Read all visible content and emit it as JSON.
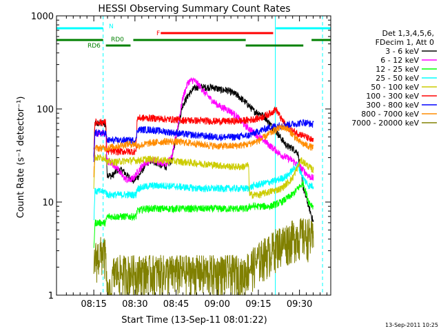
{
  "chart_data": {
    "type": "line",
    "title": "HESSI Observing Summary Count Rates",
    "xlabel": "Start Time (13-Sep-11 08:01:22)",
    "ylabel": "Count Rate (s⁻¹ detector⁻¹)",
    "yscale": "log",
    "ylim": [
      1,
      1000
    ],
    "xlim_minutes": [
      0,
      100
    ],
    "x_ticks": [
      "08:15",
      "08:30",
      "08:45",
      "09:00",
      "09:15",
      "09:30"
    ],
    "y_ticks": [
      "1",
      "10",
      "100",
      "1000"
    ],
    "timestamp": "13-Sep-2011 10:25",
    "legend": {
      "placement": "right",
      "header_lines": [
        "Det 1,3,4,5,6,",
        "FDecim 1, Att 0"
      ]
    },
    "series": [
      {
        "name": "3 - 6 keV",
        "color": "#000000",
        "x": [
          13.6,
          14,
          17,
          18,
          18.4,
          20,
          21,
          22,
          24,
          26,
          28,
          30,
          32,
          34,
          36,
          38,
          40,
          42,
          44,
          46,
          48,
          50,
          52,
          54,
          56,
          58,
          60,
          62,
          64,
          66,
          68,
          70,
          72,
          74,
          76,
          78,
          80,
          82,
          84,
          86,
          88,
          90,
          92,
          93.7
        ],
        "y": [
          30,
          70,
          70,
          68,
          20,
          19,
          20,
          22,
          22,
          19,
          17,
          19,
          24,
          28,
          27,
          25,
          24,
          28,
          60,
          110,
          140,
          165,
          175,
          170,
          172,
          168,
          160,
          160,
          150,
          140,
          125,
          110,
          95,
          90,
          82,
          68,
          58,
          48,
          40,
          38,
          34,
          14,
          9,
          6
        ]
      },
      {
        "name": "6 - 12 keV",
        "color": "#ff00ff",
        "x": [
          13.6,
          14,
          17,
          18,
          18.4,
          20,
          22,
          24,
          26,
          28,
          30,
          32,
          34,
          36,
          38,
          40,
          42,
          44,
          46,
          48,
          50,
          52,
          54,
          56,
          58,
          60,
          62,
          64,
          66,
          68,
          70,
          72,
          74,
          76,
          78,
          80,
          82,
          84,
          86,
          88,
          90,
          92,
          93.7
        ],
        "y": [
          30,
          55,
          55,
          53,
          28,
          26,
          24,
          19,
          17,
          18,
          22,
          26,
          28,
          28,
          27,
          26,
          30,
          60,
          130,
          195,
          205,
          180,
          150,
          130,
          115,
          105,
          100,
          92,
          82,
          70,
          62,
          56,
          50,
          45,
          40,
          36,
          32,
          30,
          28,
          25,
          22,
          19,
          18
        ]
      },
      {
        "name": "12 - 25 keV",
        "color": "#00ff00",
        "x": [
          13.6,
          14,
          18,
          18.4,
          20,
          24,
          29,
          29.4,
          32,
          36,
          40,
          44,
          48,
          52,
          56,
          60,
          64,
          68,
          70,
          70.4,
          74,
          78,
          80,
          82,
          84,
          86,
          88,
          90,
          92,
          93.7
        ],
        "y": [
          3,
          6,
          6,
          7,
          7,
          7,
          7,
          8,
          8.5,
          8.5,
          8.5,
          8.5,
          8.5,
          8.5,
          8.5,
          8.5,
          8.5,
          8.5,
          8.5,
          9,
          9,
          9,
          9.5,
          10,
          11,
          12,
          14,
          16,
          10,
          9
        ]
      },
      {
        "name": "25 - 50 keV",
        "color": "#00ffff",
        "x": [
          13.6,
          14,
          18,
          18.4,
          22,
          26,
          29,
          29.4,
          34,
          40,
          46,
          52,
          58,
          64,
          68,
          70,
          72,
          76,
          80,
          84,
          86,
          88,
          90,
          92,
          93.7
        ],
        "y": [
          6,
          13,
          13,
          12,
          12,
          12,
          12,
          14,
          15,
          15,
          14.5,
          14,
          14,
          14,
          14,
          14,
          15,
          16,
          17,
          19,
          22,
          25,
          18,
          15,
          15
        ]
      },
      {
        "name": "50 - 100 keV",
        "color": "#cccc00",
        "x": [
          13.6,
          14,
          18,
          18.4,
          22,
          26,
          29,
          29.4,
          34,
          40,
          46,
          52,
          58,
          64,
          68,
          70,
          70.4,
          74,
          78,
          82,
          86,
          88,
          89,
          90,
          92,
          93.7
        ],
        "y": [
          15,
          30,
          30,
          27,
          27,
          28,
          28,
          28,
          29,
          28,
          27,
          26,
          25,
          24,
          24,
          25,
          12,
          12,
          13,
          14,
          18,
          24,
          28,
          27,
          24,
          22
        ]
      },
      {
        "name": "100 - 300 keV",
        "color": "#ff0000",
        "x": [
          13.6,
          14,
          18,
          18.4,
          22,
          26,
          29,
          29.4,
          34,
          40,
          46,
          52,
          58,
          64,
          68,
          70,
          74,
          78,
          80,
          82,
          84,
          86,
          88,
          90,
          92,
          93.7
        ],
        "y": [
          35,
          72,
          72,
          35,
          35,
          35,
          35,
          80,
          80,
          78,
          76,
          75,
          74,
          74,
          75,
          76,
          80,
          90,
          100,
          78,
          65,
          58,
          55,
          52,
          48,
          45
        ]
      },
      {
        "name": "300 - 800 keV",
        "color": "#0000ff",
        "x": [
          13.6,
          14,
          18,
          18.4,
          22,
          26,
          29,
          29.4,
          34,
          40,
          46,
          52,
          58,
          64,
          68,
          70,
          74,
          78,
          80,
          84,
          88,
          90,
          92,
          93.7
        ],
        "y": [
          28,
          55,
          55,
          46,
          46,
          46,
          46,
          60,
          60,
          57,
          54,
          52,
          50,
          50,
          51,
          52,
          58,
          64,
          66,
          68,
          70,
          72,
          70,
          68
        ]
      },
      {
        "name": "800 - 7000 keV",
        "color": "#ff8c00",
        "x": [
          13.6,
          14,
          18,
          22,
          26,
          29,
          29.4,
          34,
          40,
          46,
          52,
          58,
          64,
          68,
          70,
          74,
          78,
          80,
          82,
          84,
          86,
          88,
          90,
          92,
          93.7
        ],
        "y": [
          20,
          38,
          38,
          40,
          42,
          42,
          40,
          43,
          45,
          44,
          42,
          40,
          40,
          41,
          42,
          46,
          55,
          60,
          64,
          62,
          54,
          46,
          42,
          40,
          38
        ]
      },
      {
        "name": "7000 - 20000 keV",
        "color": "#808000",
        "x": [
          13.6,
          14,
          17,
          18,
          18.4,
          20,
          20.5,
          21,
          29,
          29.4,
          40,
          50,
          60,
          66,
          68,
          68.5,
          70,
          72,
          74,
          76,
          78,
          80,
          84,
          88,
          92,
          93.7
        ],
        "y": [
          2,
          2.5,
          3,
          2.5,
          1,
          1,
          1.6,
          1.8,
          1.8,
          1.8,
          1.8,
          1.8,
          1.8,
          1.8,
          1.6,
          1.8,
          2,
          2.2,
          2.5,
          2.8,
          3,
          3.5,
          4,
          4.5,
          4.5,
          4
        ]
      }
    ],
    "state_bars": [
      {
        "label": "N",
        "color": "#00ffff",
        "level": "top",
        "segments": [
          [
            0,
            17
          ],
          [
            80,
            100
          ]
        ]
      },
      {
        "label": "F",
        "color": "#ff0000",
        "level": "upper",
        "segments": [
          [
            38,
            79
          ]
        ]
      },
      {
        "label": "RD0",
        "color": "#008000",
        "level": "middle",
        "segments": [
          [
            -1,
            17
          ],
          [
            28,
            69
          ],
          [
            93,
            100
          ]
        ]
      },
      {
        "label": "RD6",
        "color": "#008000",
        "level": "lower",
        "segments": [
          [
            18,
            27
          ],
          [
            69,
            90
          ]
        ]
      }
    ],
    "vertical_markers": {
      "solid_cyan": [
        -0.5,
        79.8
      ],
      "dashed_cyan": [
        17,
        97
      ]
    },
    "axes_color": "#000000",
    "background": "#ffffff"
  }
}
